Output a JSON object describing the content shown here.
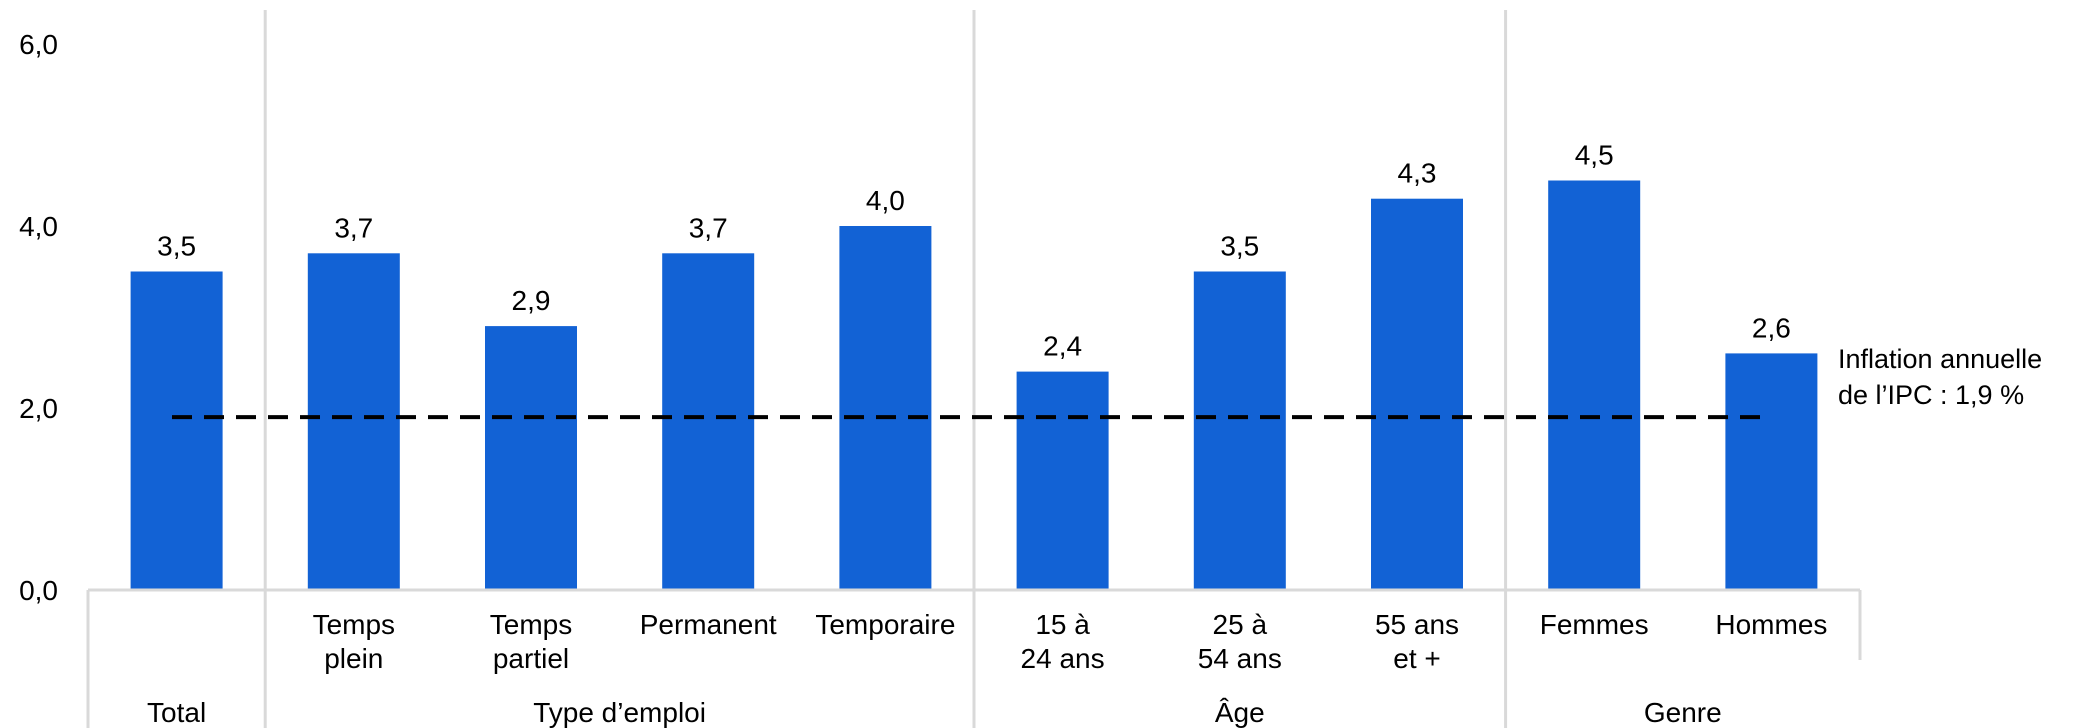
{
  "chart_data": {
    "type": "bar",
    "y_ticks": [
      "0,0",
      "2,0",
      "4,0",
      "6,0"
    ],
    "ylim": [
      0,
      6
    ],
    "grid": false,
    "bar_color": "#1262D5",
    "categories": [
      {
        "label": [
          "Total"
        ],
        "value": 3.5,
        "value_label": "3,5"
      },
      {
        "label": [
          "Temps",
          "plein"
        ],
        "value": 3.7,
        "value_label": "3,7"
      },
      {
        "label": [
          "Temps",
          "partiel"
        ],
        "value": 2.9,
        "value_label": "2,9"
      },
      {
        "label": [
          "Permanent"
        ],
        "value": 3.7,
        "value_label": "3,7"
      },
      {
        "label": [
          "Temporaire"
        ],
        "value": 4.0,
        "value_label": "4,0"
      },
      {
        "label": [
          "15 à",
          "24 ans"
        ],
        "value": 2.4,
        "value_label": "2,4"
      },
      {
        "label": [
          "25 à",
          "54 ans"
        ],
        "value": 3.5,
        "value_label": "3,5"
      },
      {
        "label": [
          "55 ans",
          "et +"
        ],
        "value": 4.3,
        "value_label": "4,3"
      },
      {
        "label": [
          "Femmes"
        ],
        "value": 4.5,
        "value_label": "4,5"
      },
      {
        "label": [
          "Hommes"
        ],
        "value": 2.6,
        "value_label": "2,6"
      }
    ],
    "groups": [
      {
        "label": "Type d’emploi",
        "start": 1,
        "end": 4
      },
      {
        "label": "Âge",
        "start": 5,
        "end": 7
      },
      {
        "label": "Genre",
        "start": 8,
        "end": 9
      }
    ],
    "reference_line": {
      "value": 1.9,
      "style": "dashed",
      "label_lines": [
        "Inflation annuelle",
        "de l’IPC : 1,9 %"
      ]
    }
  }
}
